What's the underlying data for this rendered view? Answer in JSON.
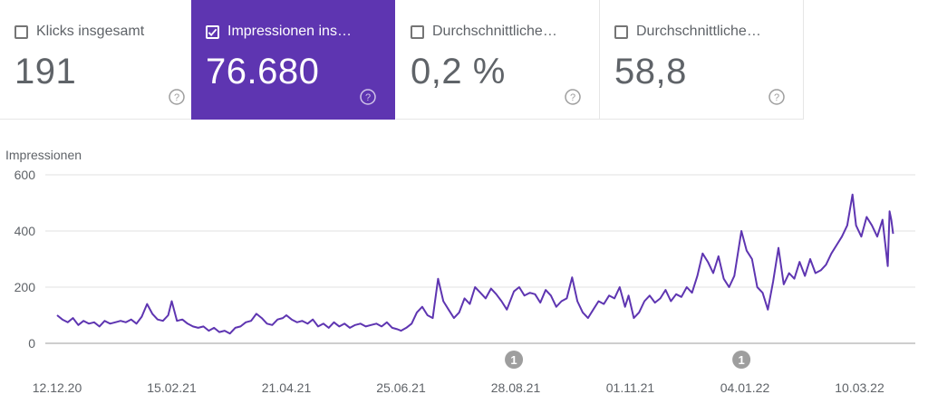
{
  "cards": [
    {
      "label": "Klicks insgesamt",
      "value": "191",
      "checked": false
    },
    {
      "label": "Impressionen ins…",
      "value": "76.680",
      "checked": true
    },
    {
      "label": "Durchschnittliche…",
      "value": "0,2 %",
      "checked": false
    },
    {
      "label": "Durchschnittliche…",
      "value": "58,8",
      "checked": false
    }
  ],
  "colors": {
    "accent": "#5e35b1",
    "line": "#5e35b1",
    "grid": "#e0e0e0",
    "text": "#5f6368",
    "annotation": "#9e9e9e"
  },
  "icons": {
    "help": "help-circle-icon",
    "check": "check-icon"
  },
  "chart_data": {
    "type": "line",
    "ylabel": "Impressionen",
    "ylim": [
      0,
      600
    ],
    "yticks": [
      0,
      200,
      400,
      600
    ],
    "grid": true,
    "x_ticks": [
      "12.12.20",
      "15.02.21",
      "21.04.21",
      "25.06.21",
      "28.08.21",
      "01.11.21",
      "04.01.22",
      "10.03.22"
    ],
    "x_start": "12.12.20",
    "x_end": "31.03.22",
    "annotations": [
      {
        "date": "28.08.21",
        "label": "1"
      },
      {
        "date": "04.01.22",
        "label": "1"
      }
    ],
    "series": [
      {
        "name": "Impressionen",
        "points": [
          [
            "12.12.20",
            100
          ],
          [
            "15.12.20",
            85
          ],
          [
            "18.12.20",
            75
          ],
          [
            "21.12.20",
            90
          ],
          [
            "24.12.20",
            65
          ],
          [
            "27.12.20",
            80
          ],
          [
            "30.12.20",
            70
          ],
          [
            "02.01.21",
            75
          ],
          [
            "05.01.21",
            60
          ],
          [
            "08.01.21",
            80
          ],
          [
            "11.01.21",
            70
          ],
          [
            "14.01.21",
            75
          ],
          [
            "17.01.21",
            80
          ],
          [
            "20.01.21",
            75
          ],
          [
            "23.01.21",
            85
          ],
          [
            "26.01.21",
            70
          ],
          [
            "29.01.21",
            95
          ],
          [
            "01.02.21",
            140
          ],
          [
            "04.02.21",
            105
          ],
          [
            "07.02.21",
            85
          ],
          [
            "10.02.21",
            80
          ],
          [
            "13.02.21",
            100
          ],
          [
            "15.02.21",
            150
          ],
          [
            "18.02.21",
            80
          ],
          [
            "21.02.21",
            85
          ],
          [
            "24.02.21",
            70
          ],
          [
            "27.02.21",
            60
          ],
          [
            "02.03.21",
            55
          ],
          [
            "05.03.21",
            60
          ],
          [
            "08.03.21",
            45
          ],
          [
            "11.03.21",
            55
          ],
          [
            "14.03.21",
            40
          ],
          [
            "17.03.21",
            45
          ],
          [
            "20.03.21",
            35
          ],
          [
            "23.03.21",
            55
          ],
          [
            "26.03.21",
            60
          ],
          [
            "29.03.21",
            75
          ],
          [
            "01.04.21",
            80
          ],
          [
            "04.04.21",
            105
          ],
          [
            "07.04.21",
            90
          ],
          [
            "10.04.21",
            70
          ],
          [
            "13.04.21",
            65
          ],
          [
            "16.04.21",
            85
          ],
          [
            "19.04.21",
            90
          ],
          [
            "21.04.21",
            100
          ],
          [
            "24.04.21",
            85
          ],
          [
            "27.04.21",
            75
          ],
          [
            "30.04.21",
            80
          ],
          [
            "03.05.21",
            70
          ],
          [
            "06.05.21",
            85
          ],
          [
            "09.05.21",
            60
          ],
          [
            "12.05.21",
            70
          ],
          [
            "15.05.21",
            55
          ],
          [
            "18.05.21",
            75
          ],
          [
            "21.05.21",
            60
          ],
          [
            "24.05.21",
            70
          ],
          [
            "27.05.21",
            55
          ],
          [
            "30.05.21",
            65
          ],
          [
            "02.06.21",
            70
          ],
          [
            "05.06.21",
            60
          ],
          [
            "08.06.21",
            65
          ],
          [
            "11.06.21",
            70
          ],
          [
            "14.06.21",
            60
          ],
          [
            "17.06.21",
            75
          ],
          [
            "20.06.21",
            55
          ],
          [
            "23.06.21",
            50
          ],
          [
            "25.06.21",
            45
          ],
          [
            "28.06.21",
            55
          ],
          [
            "01.07.21",
            70
          ],
          [
            "04.07.21",
            110
          ],
          [
            "07.07.21",
            130
          ],
          [
            "10.07.21",
            100
          ],
          [
            "13.07.21",
            90
          ],
          [
            "16.07.21",
            230
          ],
          [
            "19.07.21",
            150
          ],
          [
            "22.07.21",
            120
          ],
          [
            "25.07.21",
            90
          ],
          [
            "28.07.21",
            110
          ],
          [
            "31.07.21",
            160
          ],
          [
            "03.08.21",
            140
          ],
          [
            "06.08.21",
            200
          ],
          [
            "09.08.21",
            180
          ],
          [
            "12.08.21",
            160
          ],
          [
            "15.08.21",
            195
          ],
          [
            "18.08.21",
            175
          ],
          [
            "21.08.21",
            150
          ],
          [
            "24.08.21",
            120
          ],
          [
            "28.08.21",
            185
          ],
          [
            "31.08.21",
            200
          ],
          [
            "03.09.21",
            170
          ],
          [
            "06.09.21",
            180
          ],
          [
            "09.09.21",
            175
          ],
          [
            "12.09.21",
            145
          ],
          [
            "15.09.21",
            190
          ],
          [
            "18.09.21",
            170
          ],
          [
            "21.09.21",
            130
          ],
          [
            "24.09.21",
            150
          ],
          [
            "27.09.21",
            160
          ],
          [
            "30.09.21",
            235
          ],
          [
            "03.10.21",
            150
          ],
          [
            "06.10.21",
            110
          ],
          [
            "09.10.21",
            90
          ],
          [
            "12.10.21",
            120
          ],
          [
            "15.10.21",
            150
          ],
          [
            "18.10.21",
            140
          ],
          [
            "21.10.21",
            170
          ],
          [
            "24.10.21",
            160
          ],
          [
            "27.10.21",
            200
          ],
          [
            "30.10.21",
            130
          ],
          [
            "01.11.21",
            170
          ],
          [
            "04.11.21",
            90
          ],
          [
            "07.11.21",
            110
          ],
          [
            "10.11.21",
            150
          ],
          [
            "13.11.21",
            170
          ],
          [
            "16.11.21",
            145
          ],
          [
            "19.11.21",
            160
          ],
          [
            "22.11.21",
            190
          ],
          [
            "25.11.21",
            150
          ],
          [
            "28.11.21",
            175
          ],
          [
            "01.12.21",
            165
          ],
          [
            "04.12.21",
            200
          ],
          [
            "07.12.21",
            180
          ],
          [
            "10.12.21",
            240
          ],
          [
            "13.12.21",
            320
          ],
          [
            "16.12.21",
            290
          ],
          [
            "19.12.21",
            250
          ],
          [
            "22.12.21",
            310
          ],
          [
            "25.12.21",
            230
          ],
          [
            "28.12.21",
            200
          ],
          [
            "31.12.21",
            240
          ],
          [
            "04.01.22",
            400
          ],
          [
            "07.01.22",
            330
          ],
          [
            "10.01.22",
            300
          ],
          [
            "13.01.22",
            200
          ],
          [
            "16.01.22",
            180
          ],
          [
            "19.01.22",
            120
          ],
          [
            "22.01.22",
            220
          ],
          [
            "25.01.22",
            340
          ],
          [
            "28.01.22",
            210
          ],
          [
            "31.01.22",
            250
          ],
          [
            "03.02.22",
            230
          ],
          [
            "06.02.22",
            290
          ],
          [
            "09.02.22",
            240
          ],
          [
            "12.02.22",
            300
          ],
          [
            "15.02.22",
            250
          ],
          [
            "18.02.22",
            260
          ],
          [
            "21.02.22",
            280
          ],
          [
            "24.02.22",
            320
          ],
          [
            "27.02.22",
            350
          ],
          [
            "02.03.22",
            380
          ],
          [
            "05.03.22",
            420
          ],
          [
            "08.03.22",
            530
          ],
          [
            "10.03.22",
            420
          ],
          [
            "13.03.22",
            380
          ],
          [
            "16.03.22",
            450
          ],
          [
            "19.03.22",
            420
          ],
          [
            "22.03.22",
            380
          ],
          [
            "25.03.22",
            440
          ],
          [
            "28.03.22",
            275
          ],
          [
            "29.03.22",
            470
          ],
          [
            "30.03.22",
            440
          ],
          [
            "31.03.22",
            390
          ]
        ]
      }
    ]
  }
}
